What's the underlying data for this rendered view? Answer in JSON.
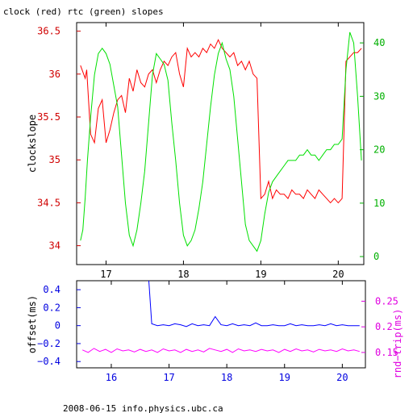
{
  "title": "clock (red) rtc (green) slopes",
  "footer": "2008-06-15 info.physics.ubc.ca",
  "chart_data": [
    {
      "type": "line",
      "ylabel": "clockslope",
      "y2label": "",
      "xlim": [
        16.62,
        20.33
      ],
      "ylim": [
        33.78,
        36.6
      ],
      "y2lim": [
        -1.5,
        43.8
      ],
      "xticks": [
        "17",
        "18",
        "19",
        "20"
      ],
      "yticks": [
        "34",
        "34.5",
        "35",
        "35.5",
        "36",
        "36.5"
      ],
      "y2ticks": [
        "0",
        "10",
        "20",
        "30",
        "40"
      ],
      "series": [
        {
          "color": "#ff0000",
          "axis": "left",
          "x": [
            16.67,
            16.73,
            16.75,
            16.8,
            16.85,
            16.9,
            16.95,
            17.0,
            17.05,
            17.1,
            17.15,
            17.2,
            17.25,
            17.3,
            17.35,
            17.4,
            17.45,
            17.5,
            17.55,
            17.6,
            17.65,
            17.7,
            17.75,
            17.8,
            17.85,
            17.9,
            17.95,
            18.0,
            18.05,
            18.1,
            18.15,
            18.2,
            18.25,
            18.3,
            18.35,
            18.4,
            18.45,
            18.5,
            18.55,
            18.6,
            18.65,
            18.7,
            18.75,
            18.8,
            18.85,
            18.9,
            18.95,
            19.0,
            19.05,
            19.1,
            19.15,
            19.2,
            19.25,
            19.3,
            19.35,
            19.4,
            19.45,
            19.5,
            19.55,
            19.6,
            19.65,
            19.7,
            19.75,
            19.8,
            19.85,
            19.9,
            19.95,
            20.0,
            20.05,
            20.1,
            20.15,
            20.2,
            20.25,
            20.3
          ],
          "y": [
            36.1,
            35.95,
            36.05,
            35.3,
            35.2,
            35.6,
            35.7,
            35.2,
            35.35,
            35.55,
            35.7,
            35.75,
            35.55,
            35.95,
            35.8,
            36.05,
            35.9,
            35.85,
            36.0,
            36.05,
            35.9,
            36.05,
            36.15,
            36.1,
            36.2,
            36.25,
            36.0,
            35.85,
            36.3,
            36.2,
            36.25,
            36.2,
            36.3,
            36.25,
            36.35,
            36.3,
            36.4,
            36.3,
            36.25,
            36.2,
            36.25,
            36.1,
            36.15,
            36.05,
            36.15,
            36.0,
            35.95,
            34.55,
            34.6,
            34.75,
            34.55,
            34.65,
            34.6,
            34.6,
            34.55,
            34.65,
            34.6,
            34.6,
            34.55,
            34.65,
            34.6,
            34.55,
            34.65,
            34.6,
            34.55,
            34.5,
            34.55,
            34.5,
            34.55,
            36.15,
            36.2,
            36.25,
            36.25,
            36.3
          ]
        },
        {
          "color": "#00e000",
          "axis": "right",
          "x": [
            16.67,
            16.7,
            16.73,
            16.76,
            16.8,
            16.85,
            16.9,
            16.95,
            17.0,
            17.05,
            17.1,
            17.15,
            17.2,
            17.25,
            17.3,
            17.35,
            17.4,
            17.45,
            17.5,
            17.55,
            17.6,
            17.65,
            17.7,
            17.75,
            17.8,
            17.85,
            17.9,
            17.95,
            18.0,
            18.05,
            18.1,
            18.15,
            18.2,
            18.25,
            18.3,
            18.35,
            18.4,
            18.45,
            18.5,
            18.55,
            18.6,
            18.65,
            18.7,
            18.75,
            18.8,
            18.85,
            18.9,
            18.95,
            19.0,
            19.05,
            19.1,
            19.15,
            19.2,
            19.25,
            19.3,
            19.35,
            19.4,
            19.45,
            19.5,
            19.55,
            19.6,
            19.65,
            19.7,
            19.75,
            19.8,
            19.85,
            19.9,
            19.95,
            20.0,
            20.05,
            20.1,
            20.15,
            20.2,
            20.25,
            20.3
          ],
          "y": [
            3,
            5,
            11,
            18,
            26,
            34,
            38,
            39,
            38,
            36,
            32,
            28,
            19,
            10,
            4,
            2,
            5,
            10,
            16,
            25,
            34,
            38,
            37,
            36,
            33,
            25,
            18,
            10,
            4,
            2,
            3,
            5,
            9,
            14,
            21,
            28,
            34,
            38,
            40,
            37,
            35,
            30,
            22,
            14,
            6,
            3,
            2,
            1,
            3,
            8,
            12,
            14,
            15,
            16,
            17,
            18,
            18,
            18,
            19,
            19,
            20,
            19,
            19,
            18,
            19,
            20,
            20,
            21,
            21,
            22,
            35,
            42,
            40,
            30,
            18
          ]
        }
      ]
    },
    {
      "type": "line",
      "ylabel": "offset(ms)",
      "y2label": "rnd−trip(ms)",
      "xlim": [
        15.4,
        20.4
      ],
      "ylim": [
        -0.47,
        0.5
      ],
      "y2lim": [
        0.12,
        0.29
      ],
      "xticks": [
        "16",
        "17",
        "18",
        "19",
        "20"
      ],
      "yticks": [
        "−0.4",
        "−0.2",
        "0",
        "0.2",
        "0.4"
      ],
      "y2ticks": [
        "0.15",
        "0.2",
        "0.25"
      ],
      "series": [
        {
          "color": "#0000ff",
          "axis": "left",
          "x": [
            16.65,
            16.7,
            16.8,
            16.9,
            17.0,
            17.1,
            17.2,
            17.3,
            17.4,
            17.5,
            17.6,
            17.7,
            17.8,
            17.9,
            18.0,
            18.1,
            18.2,
            18.3,
            18.4,
            18.5,
            18.6,
            18.7,
            18.8,
            18.9,
            19.0,
            19.1,
            19.2,
            19.3,
            19.4,
            19.5,
            19.6,
            19.7,
            19.8,
            19.9,
            20.0,
            20.1,
            20.2,
            20.3
          ],
          "y": [
            0.5,
            0.02,
            0.0,
            0.01,
            0.0,
            0.02,
            0.01,
            -0.01,
            0.02,
            0.0,
            0.01,
            0.0,
            0.1,
            0.01,
            0.0,
            0.02,
            0.0,
            0.01,
            0.0,
            0.03,
            0.0,
            0.0,
            0.01,
            0.0,
            0.0,
            0.02,
            0.0,
            0.01,
            0.0,
            0.0,
            0.01,
            0.0,
            0.02,
            0.0,
            0.01,
            0.0,
            0.0,
            0.0
          ]
        },
        {
          "color": "#ff00ff",
          "axis": "right",
          "x": [
            15.5,
            15.6,
            15.7,
            15.8,
            15.9,
            16.0,
            16.1,
            16.2,
            16.3,
            16.4,
            16.5,
            16.6,
            16.7,
            16.8,
            16.9,
            17.0,
            17.1,
            17.2,
            17.3,
            17.4,
            17.5,
            17.6,
            17.7,
            17.8,
            17.9,
            18.0,
            18.1,
            18.2,
            18.3,
            18.4,
            18.5,
            18.6,
            18.7,
            18.8,
            18.9,
            19.0,
            19.1,
            19.2,
            19.3,
            19.4,
            19.5,
            19.6,
            19.7,
            19.8,
            19.9,
            20.0,
            20.1,
            20.2,
            20.3
          ],
          "y": [
            0.155,
            0.15,
            0.158,
            0.152,
            0.156,
            0.15,
            0.157,
            0.153,
            0.155,
            0.151,
            0.156,
            0.152,
            0.155,
            0.15,
            0.157,
            0.153,
            0.155,
            0.15,
            0.156,
            0.152,
            0.155,
            0.151,
            0.158,
            0.155,
            0.152,
            0.156,
            0.15,
            0.157,
            0.153,
            0.155,
            0.152,
            0.156,
            0.153,
            0.155,
            0.15,
            0.156,
            0.152,
            0.157,
            0.153,
            0.155,
            0.151,
            0.156,
            0.153,
            0.155,
            0.152,
            0.157,
            0.153,
            0.155,
            0.152
          ]
        }
      ]
    }
  ]
}
